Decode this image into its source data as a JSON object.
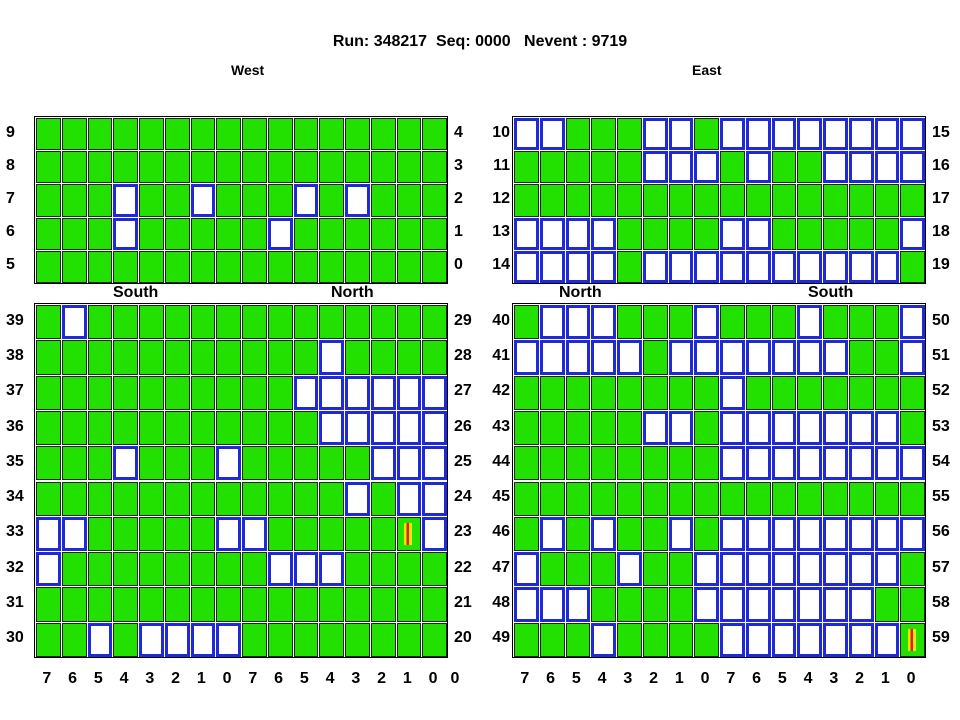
{
  "title": "Run: 348217  Seq: 0000   Nevent : 9719",
  "headers": {
    "west": "West",
    "east": "East"
  },
  "subheaders": {
    "left_south": "South",
    "left_north": "North",
    "right_north": "North",
    "right_south": "South"
  },
  "west_top": {
    "left_labels": [
      "9",
      "8",
      "7",
      "6",
      "5"
    ],
    "right_labels": [
      "4",
      "3",
      "2",
      "1",
      "0"
    ],
    "empty": [
      [
        2,
        3
      ],
      [
        2,
        6
      ],
      [
        2,
        10
      ],
      [
        2,
        12
      ],
      [
        3,
        3
      ],
      [
        3,
        9
      ]
    ]
  },
  "east_top": {
    "left_labels": [
      "10",
      "11",
      "12",
      "13",
      "14"
    ],
    "right_labels": [
      "15",
      "16",
      "17",
      "18",
      "19"
    ],
    "empty": [
      [
        0,
        0
      ],
      [
        0,
        1
      ],
      [
        0,
        5
      ],
      [
        0,
        6
      ],
      [
        0,
        8
      ],
      [
        0,
        9
      ],
      [
        0,
        10
      ],
      [
        0,
        11
      ],
      [
        0,
        12
      ],
      [
        0,
        13
      ],
      [
        0,
        14
      ],
      [
        0,
        15
      ],
      [
        1,
        5
      ],
      [
        1,
        6
      ],
      [
        1,
        7
      ],
      [
        1,
        9
      ],
      [
        1,
        12
      ],
      [
        1,
        13
      ],
      [
        1,
        14
      ],
      [
        1,
        15
      ],
      [
        3,
        0
      ],
      [
        3,
        1
      ],
      [
        3,
        2
      ],
      [
        3,
        3
      ],
      [
        3,
        8
      ],
      [
        3,
        9
      ],
      [
        3,
        15
      ],
      [
        4,
        0
      ],
      [
        4,
        1
      ],
      [
        4,
        2
      ],
      [
        4,
        3
      ],
      [
        4,
        5
      ],
      [
        4,
        6
      ],
      [
        4,
        7
      ],
      [
        4,
        8
      ],
      [
        4,
        9
      ],
      [
        4,
        10
      ],
      [
        4,
        11
      ],
      [
        4,
        12
      ],
      [
        4,
        13
      ],
      [
        4,
        14
      ]
    ]
  },
  "west_bottom": {
    "left_labels": [
      "39",
      "38",
      "37",
      "36",
      "35",
      "34",
      "33",
      "32",
      "31",
      "30"
    ],
    "right_labels": [
      "29",
      "28",
      "27",
      "26",
      "25",
      "24",
      "23",
      "22",
      "21",
      "20"
    ],
    "empty": [
      [
        0,
        1
      ],
      [
        1,
        11
      ],
      [
        2,
        10
      ],
      [
        2,
        11
      ],
      [
        2,
        12
      ],
      [
        2,
        13
      ],
      [
        2,
        14
      ],
      [
        2,
        15
      ],
      [
        3,
        11
      ],
      [
        3,
        12
      ],
      [
        3,
        13
      ],
      [
        3,
        14
      ],
      [
        3,
        15
      ],
      [
        4,
        3
      ],
      [
        4,
        7
      ],
      [
        4,
        13
      ],
      [
        4,
        14
      ],
      [
        4,
        15
      ],
      [
        5,
        12
      ],
      [
        5,
        14
      ],
      [
        5,
        15
      ],
      [
        6,
        0
      ],
      [
        6,
        1
      ],
      [
        6,
        7
      ],
      [
        6,
        8
      ],
      [
        6,
        15
      ],
      [
        7,
        0
      ],
      [
        7,
        9
      ],
      [
        7,
        10
      ],
      [
        7,
        11
      ],
      [
        9,
        2
      ],
      [
        9,
        4
      ],
      [
        9,
        5
      ],
      [
        9,
        6
      ],
      [
        9,
        7
      ]
    ],
    "hot": [
      [
        6,
        14
      ]
    ]
  },
  "east_bottom": {
    "left_labels": [
      "40",
      "41",
      "42",
      "43",
      "44",
      "45",
      "46",
      "47",
      "48",
      "49"
    ],
    "right_labels": [
      "50",
      "51",
      "52",
      "53",
      "54",
      "55",
      "56",
      "57",
      "58",
      "59"
    ],
    "empty": [
      [
        0,
        1
      ],
      [
        0,
        2
      ],
      [
        0,
        3
      ],
      [
        0,
        7
      ],
      [
        0,
        11
      ],
      [
        0,
        15
      ],
      [
        1,
        0
      ],
      [
        1,
        1
      ],
      [
        1,
        2
      ],
      [
        1,
        3
      ],
      [
        1,
        4
      ],
      [
        1,
        6
      ],
      [
        1,
        7
      ],
      [
        1,
        8
      ],
      [
        1,
        9
      ],
      [
        1,
        10
      ],
      [
        1,
        11
      ],
      [
        1,
        12
      ],
      [
        1,
        15
      ],
      [
        2,
        8
      ],
      [
        3,
        5
      ],
      [
        3,
        6
      ],
      [
        3,
        8
      ],
      [
        3,
        9
      ],
      [
        3,
        10
      ],
      [
        3,
        11
      ],
      [
        3,
        12
      ],
      [
        3,
        13
      ],
      [
        3,
        14
      ],
      [
        4,
        8
      ],
      [
        4,
        9
      ],
      [
        4,
        10
      ],
      [
        4,
        11
      ],
      [
        4,
        12
      ],
      [
        4,
        13
      ],
      [
        4,
        14
      ],
      [
        4,
        15
      ],
      [
        6,
        1
      ],
      [
        6,
        3
      ],
      [
        6,
        6
      ],
      [
        6,
        8
      ],
      [
        6,
        9
      ],
      [
        6,
        10
      ],
      [
        6,
        11
      ],
      [
        6,
        12
      ],
      [
        6,
        13
      ],
      [
        6,
        14
      ],
      [
        6,
        15
      ],
      [
        7,
        0
      ],
      [
        7,
        4
      ],
      [
        7,
        7
      ],
      [
        7,
        8
      ],
      [
        7,
        9
      ],
      [
        7,
        10
      ],
      [
        7,
        11
      ],
      [
        7,
        12
      ],
      [
        7,
        13
      ],
      [
        7,
        14
      ],
      [
        8,
        0
      ],
      [
        8,
        1
      ],
      [
        8,
        2
      ],
      [
        8,
        7
      ],
      [
        8,
        8
      ],
      [
        8,
        9
      ],
      [
        8,
        10
      ],
      [
        8,
        11
      ],
      [
        8,
        12
      ],
      [
        8,
        13
      ],
      [
        9,
        3
      ],
      [
        9,
        8
      ],
      [
        9,
        9
      ],
      [
        9,
        10
      ],
      [
        9,
        11
      ],
      [
        9,
        12
      ],
      [
        9,
        13
      ],
      [
        9,
        14
      ]
    ],
    "hot": [
      [
        9,
        15
      ]
    ]
  },
  "col_labels": [
    "7",
    "6",
    "5",
    "4",
    "3",
    "2",
    "1",
    "0",
    "7",
    "6",
    "5",
    "4",
    "3",
    "2",
    "1",
    "0"
  ],
  "col_labels_west_end": "0",
  "colors": {
    "hit": "#22e000",
    "empty_border": "#1f2ad6",
    "hot_red": "#d8231a",
    "hot_yellow": "#f2e400"
  }
}
